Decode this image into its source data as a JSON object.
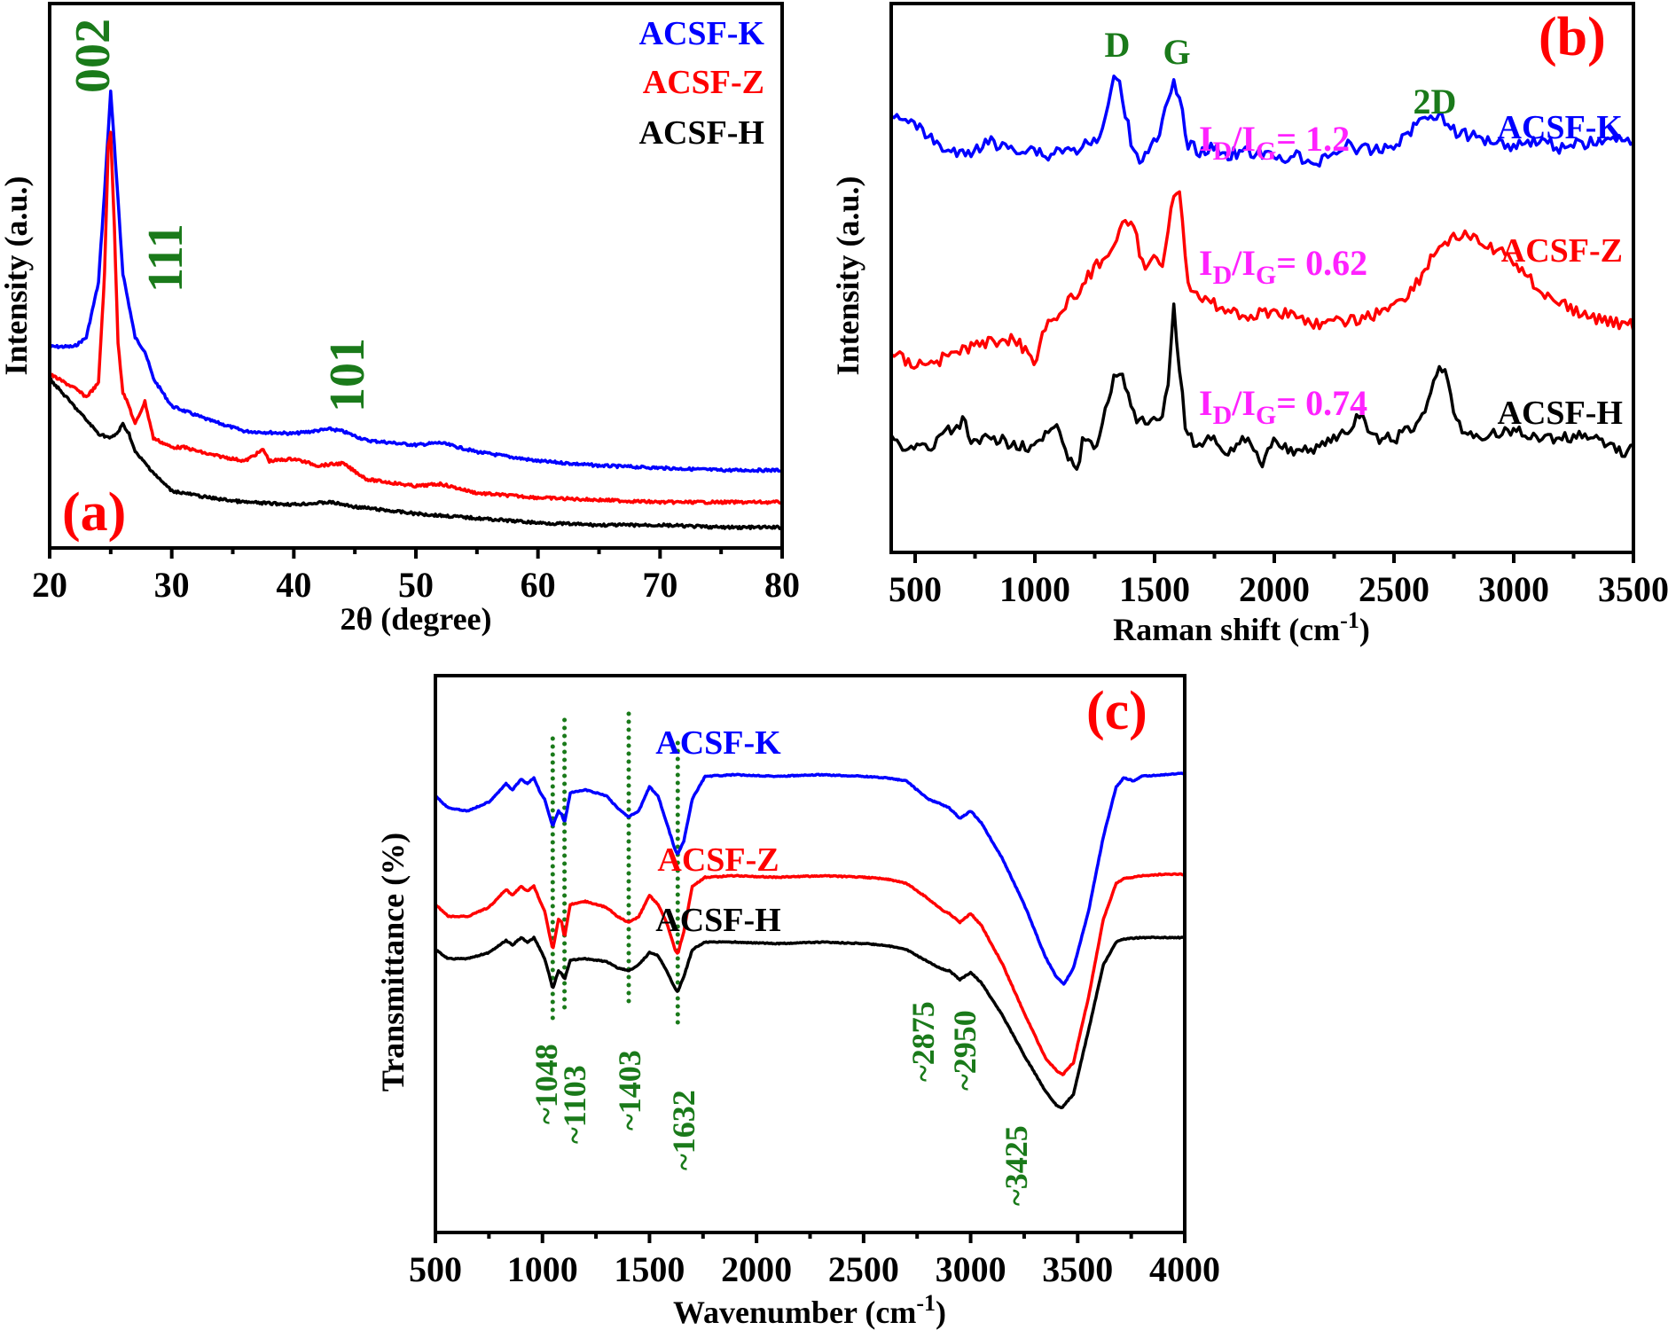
{
  "colors": {
    "ACSF-K": "#0000ff",
    "ACSF-Z": "#ff0000",
    "ACSF-H": "#000000",
    "annotation": "#1a7a1a",
    "ratio": "#ff22ff",
    "panel_label": "#ff0000"
  },
  "chart_data": [
    {
      "id": "a",
      "type": "line",
      "panel_label": "(a)",
      "title": "",
      "xlabel": "2θ (degree)",
      "ylabel": "Intensity (a.u.)",
      "xlim": [
        20,
        80
      ],
      "xticks": [
        20,
        30,
        40,
        50,
        60,
        70,
        80
      ],
      "y_ticks_shown": false,
      "legend": [
        "ACSF-K",
        "ACSF-Z",
        "ACSF-H"
      ],
      "legend_position": "top-right",
      "annotations": [
        {
          "text": "002",
          "x": 25,
          "rotated": true
        },
        {
          "text": "111",
          "x": 30,
          "rotated": true
        },
        {
          "text": "101",
          "x": 43,
          "rotated": true
        }
      ],
      "series": [
        {
          "name": "ACSF-K",
          "x": [
            20,
            22,
            23,
            24,
            24.5,
            25,
            25.5,
            26,
            27,
            27.8,
            28.5,
            30,
            33,
            36,
            40,
            43,
            44,
            46,
            50,
            52,
            55,
            60,
            65,
            70,
            75,
            80
          ],
          "y": [
            0.44,
            0.44,
            0.46,
            0.58,
            0.78,
            1.0,
            0.8,
            0.6,
            0.46,
            0.43,
            0.37,
            0.31,
            0.28,
            0.255,
            0.25,
            0.26,
            0.255,
            0.235,
            0.225,
            0.23,
            0.21,
            0.19,
            0.18,
            0.175,
            0.17,
            0.17
          ]
        },
        {
          "name": "ACSF-Z",
          "x": [
            20,
            22,
            23,
            24,
            24.5,
            24.8,
            25,
            25.3,
            25.6,
            26,
            26.5,
            27,
            27.8,
            28.5,
            30,
            31,
            33,
            35,
            36,
            37.5,
            38,
            40,
            42,
            44,
            46,
            50,
            52,
            55,
            60,
            65,
            70,
            75,
            80
          ],
          "y": [
            0.38,
            0.35,
            0.33,
            0.36,
            0.6,
            0.88,
            0.91,
            0.7,
            0.45,
            0.34,
            0.31,
            0.27,
            0.32,
            0.24,
            0.22,
            0.22,
            0.205,
            0.195,
            0.19,
            0.215,
            0.19,
            0.195,
            0.18,
            0.185,
            0.15,
            0.135,
            0.14,
            0.12,
            0.11,
            0.105,
            0.1,
            0.1,
            0.1
          ]
        },
        {
          "name": "ACSF-H",
          "x": [
            20,
            21,
            22,
            23,
            24,
            25,
            25.5,
            26,
            26.5,
            27,
            28,
            29,
            30,
            33,
            36,
            40,
            43,
            45,
            50,
            55,
            60,
            65,
            70,
            75,
            80
          ],
          "y": [
            0.37,
            0.34,
            0.31,
            0.28,
            0.25,
            0.24,
            0.25,
            0.27,
            0.25,
            0.21,
            0.18,
            0.15,
            0.125,
            0.11,
            0.1,
            0.095,
            0.1,
            0.09,
            0.075,
            0.065,
            0.055,
            0.05,
            0.05,
            0.045,
            0.045
          ]
        }
      ]
    },
    {
      "id": "b",
      "type": "line",
      "panel_label": "(b)",
      "title": "",
      "xlabel": "Raman shift (cm-1)",
      "xlabel_main": "Raman shift (cm",
      "xlabel_sup": "-1",
      "xlabel_close": ")",
      "ylabel": "Intensity (a.u.)",
      "xlim": [
        400,
        3500
      ],
      "xticks": [
        500,
        1000,
        1500,
        2000,
        2500,
        3000,
        3500
      ],
      "y_ticks_shown": false,
      "legend_position": "right",
      "peak_labels": [
        {
          "text": "D",
          "x": 1345
        },
        {
          "text": "G",
          "x": 1580
        },
        {
          "text": "2D",
          "x": 2690
        }
      ],
      "ratios": [
        {
          "series": "ACSF-K",
          "label": "ID/IG= 1.2",
          "value": 1.2
        },
        {
          "series": "ACSF-Z",
          "label": "ID/IG= 0.62",
          "value": 0.62
        },
        {
          "series": "ACSF-H",
          "label": "ID/IG= 0.74",
          "value": 0.74
        }
      ],
      "series": [
        {
          "name": "ACSF-K",
          "offset": 2.0,
          "x": [
            400,
            450,
            500,
            550,
            600,
            650,
            700,
            750,
            800,
            850,
            900,
            950,
            1000,
            1050,
            1100,
            1150,
            1200,
            1250,
            1290,
            1320,
            1345,
            1370,
            1400,
            1440,
            1480,
            1520,
            1550,
            1580,
            1610,
            1640,
            1680,
            1750,
            1800,
            1900,
            2000,
            2100,
            2150,
            2200,
            2300,
            2350,
            2400,
            2500,
            2560,
            2620,
            2660,
            2700,
            2750,
            2800,
            2900,
            3000,
            3100,
            3200,
            3300,
            3400,
            3500
          ],
          "y": [
            0.62,
            0.65,
            0.55,
            0.48,
            0.4,
            0.35,
            0.32,
            0.36,
            0.45,
            0.38,
            0.4,
            0.36,
            0.38,
            0.3,
            0.38,
            0.35,
            0.4,
            0.42,
            0.55,
            0.85,
            1.0,
            0.75,
            0.45,
            0.28,
            0.4,
            0.45,
            0.72,
            0.9,
            0.7,
            0.42,
            0.35,
            0.38,
            0.33,
            0.35,
            0.3,
            0.32,
            0.22,
            0.3,
            0.4,
            0.38,
            0.35,
            0.4,
            0.5,
            0.62,
            0.66,
            0.62,
            0.52,
            0.48,
            0.45,
            0.4,
            0.45,
            0.38,
            0.42,
            0.44,
            0.45
          ]
        },
        {
          "name": "ACSF-Z",
          "offset": 1.0,
          "x": [
            400,
            500,
            600,
            700,
            800,
            900,
            950,
            1000,
            1050,
            1100,
            1150,
            1200,
            1250,
            1300,
            1350,
            1380,
            1420,
            1460,
            1500,
            1530,
            1560,
            1580,
            1600,
            1620,
            1640,
            1680,
            1750,
            1800,
            1900,
            2000,
            2100,
            2200,
            2300,
            2400,
            2500,
            2550,
            2600,
            2650,
            2700,
            2750,
            2800,
            2850,
            2900,
            3000,
            3100,
            3200,
            3300,
            3400,
            3500
          ],
          "y": [
            0.25,
            0.2,
            0.22,
            0.27,
            0.3,
            0.32,
            0.28,
            0.22,
            0.4,
            0.42,
            0.5,
            0.56,
            0.65,
            0.7,
            0.8,
            0.86,
            0.8,
            0.62,
            0.7,
            0.66,
            0.85,
            1.0,
            1.02,
            0.8,
            0.58,
            0.5,
            0.48,
            0.45,
            0.42,
            0.45,
            0.42,
            0.38,
            0.4,
            0.42,
            0.48,
            0.52,
            0.58,
            0.68,
            0.76,
            0.78,
            0.8,
            0.76,
            0.74,
            0.68,
            0.55,
            0.48,
            0.42,
            0.4,
            0.38
          ]
        },
        {
          "name": "ACSF-H",
          "offset": 0.0,
          "x": [
            400,
            450,
            500,
            550,
            600,
            650,
            700,
            750,
            800,
            900,
            1000,
            1050,
            1100,
            1150,
            1180,
            1200,
            1250,
            1300,
            1330,
            1350,
            1380,
            1420,
            1480,
            1530,
            1560,
            1580,
            1600,
            1630,
            1680,
            1750,
            1800,
            1900,
            1950,
            2000,
            2100,
            2200,
            2300,
            2360,
            2400,
            2500,
            2600,
            2650,
            2680,
            2700,
            2720,
            2760,
            2800,
            2900,
            3000,
            3100,
            3200,
            3300,
            3400,
            3450,
            3500
          ],
          "y": [
            0.3,
            0.26,
            0.28,
            0.24,
            0.3,
            0.34,
            0.38,
            0.26,
            0.3,
            0.28,
            0.26,
            0.32,
            0.34,
            0.18,
            0.16,
            0.3,
            0.26,
            0.45,
            0.6,
            0.62,
            0.55,
            0.38,
            0.38,
            0.36,
            0.6,
            0.92,
            0.7,
            0.34,
            0.26,
            0.3,
            0.24,
            0.3,
            0.18,
            0.3,
            0.22,
            0.28,
            0.32,
            0.42,
            0.3,
            0.3,
            0.36,
            0.5,
            0.62,
            0.65,
            0.6,
            0.38,
            0.3,
            0.32,
            0.34,
            0.3,
            0.3,
            0.32,
            0.28,
            0.22,
            0.28
          ]
        }
      ]
    },
    {
      "id": "c",
      "type": "line",
      "panel_label": "(c)",
      "title": "",
      "xlabel": "Wavenumber (cm-1)",
      "xlabel_main": "Wavenumber (cm",
      "xlabel_sup": "-1",
      "xlabel_close": ")",
      "ylabel": "Transmittance (%)",
      "xlim": [
        500,
        4000
      ],
      "xticks": [
        500,
        1000,
        1500,
        2000,
        2500,
        3000,
        3500,
        4000
      ],
      "y_ticks_shown": false,
      "legend_position": "center-left",
      "peak_labels": [
        "~1048",
        "~1103",
        "~1403",
        "~1632",
        "~2875",
        "~2950",
        "~3425"
      ],
      "peak_positions": [
        1048,
        1103,
        1403,
        1632,
        2875,
        2950,
        3425
      ],
      "dotted_lines_at": [
        1048,
        1103,
        1403,
        1632
      ],
      "series": [
        {
          "name": "ACSF-K",
          "x": [
            500,
            560,
            650,
            750,
            830,
            860,
            900,
            930,
            960,
            990,
            1010,
            1030,
            1048,
            1075,
            1090,
            1103,
            1130,
            1200,
            1300,
            1350,
            1403,
            1450,
            1500,
            1540,
            1580,
            1620,
            1632,
            1660,
            1700,
            1760,
            1900,
            2100,
            2300,
            2500,
            2600,
            2700,
            2800,
            2870,
            2900,
            2950,
            3000,
            3050,
            3150,
            3250,
            3350,
            3400,
            3437,
            3480,
            3550,
            3620,
            3680,
            3715,
            3760,
            3800,
            3900,
            4000
          ],
          "y": [
            0.72,
            0.64,
            0.62,
            0.68,
            0.8,
            0.76,
            0.83,
            0.8,
            0.84,
            0.74,
            0.7,
            0.6,
            0.52,
            0.62,
            0.6,
            0.54,
            0.74,
            0.76,
            0.72,
            0.64,
            0.58,
            0.62,
            0.78,
            0.72,
            0.54,
            0.36,
            0.33,
            0.42,
            0.7,
            0.85,
            0.86,
            0.85,
            0.86,
            0.85,
            0.84,
            0.82,
            0.7,
            0.66,
            0.64,
            0.57,
            0.62,
            0.54,
            0.3,
            0.0,
            -0.35,
            -0.48,
            -0.53,
            -0.42,
            -0.05,
            0.45,
            0.78,
            0.84,
            0.82,
            0.85,
            0.86,
            0.87
          ]
        },
        {
          "name": "ACSF-Z",
          "x": [
            500,
            560,
            650,
            750,
            830,
            860,
            900,
            930,
            960,
            990,
            1010,
            1030,
            1048,
            1075,
            1090,
            1103,
            1130,
            1200,
            1300,
            1350,
            1403,
            1450,
            1500,
            1540,
            1580,
            1620,
            1632,
            1660,
            1700,
            1760,
            1900,
            2100,
            2300,
            2500,
            2600,
            2700,
            2800,
            2870,
            2900,
            2950,
            3000,
            3050,
            3150,
            3250,
            3350,
            3400,
            3430,
            3480,
            3550,
            3620,
            3680,
            3715,
            3800,
            3900,
            4000
          ],
          "y": [
            0.0,
            -0.08,
            -0.08,
            -0.02,
            0.1,
            0.06,
            0.12,
            0.09,
            0.12,
            0.02,
            -0.04,
            -0.18,
            -0.3,
            -0.1,
            -0.12,
            -0.22,
            0.0,
            0.02,
            -0.02,
            -0.08,
            -0.12,
            -0.08,
            0.06,
            0.0,
            -0.12,
            -0.3,
            -0.33,
            -0.18,
            0.12,
            0.18,
            0.19,
            0.18,
            0.19,
            0.18,
            0.17,
            0.14,
            0.04,
            -0.04,
            -0.06,
            -0.12,
            -0.06,
            -0.14,
            -0.4,
            -0.72,
            -1.02,
            -1.1,
            -1.13,
            -1.05,
            -0.62,
            -0.1,
            0.14,
            0.17,
            0.19,
            0.2,
            0.2
          ]
        },
        {
          "name": "ACSF-H",
          "x": [
            500,
            560,
            650,
            750,
            830,
            860,
            900,
            930,
            960,
            990,
            1010,
            1030,
            1048,
            1075,
            1090,
            1103,
            1130,
            1200,
            1300,
            1350,
            1403,
            1450,
            1500,
            1540,
            1580,
            1620,
            1632,
            1660,
            1700,
            1760,
            1900,
            2100,
            2300,
            2500,
            2600,
            2700,
            2800,
            2870,
            2900,
            2950,
            3000,
            3050,
            3150,
            3250,
            3350,
            3400,
            3425,
            3480,
            3550,
            3620,
            3680,
            3715,
            3800,
            3900,
            4000
          ],
          "y": [
            -0.3,
            -0.36,
            -0.36,
            -0.32,
            -0.24,
            -0.27,
            -0.22,
            -0.25,
            -0.22,
            -0.3,
            -0.36,
            -0.46,
            -0.56,
            -0.44,
            -0.46,
            -0.5,
            -0.37,
            -0.36,
            -0.38,
            -0.42,
            -0.44,
            -0.4,
            -0.32,
            -0.34,
            -0.44,
            -0.56,
            -0.58,
            -0.48,
            -0.3,
            -0.25,
            -0.25,
            -0.26,
            -0.25,
            -0.26,
            -0.27,
            -0.3,
            -0.38,
            -0.43,
            -0.44,
            -0.5,
            -0.45,
            -0.52,
            -0.74,
            -1.0,
            -1.24,
            -1.33,
            -1.35,
            -1.26,
            -0.84,
            -0.4,
            -0.25,
            -0.23,
            -0.22,
            -0.22,
            -0.22
          ]
        }
      ]
    }
  ]
}
